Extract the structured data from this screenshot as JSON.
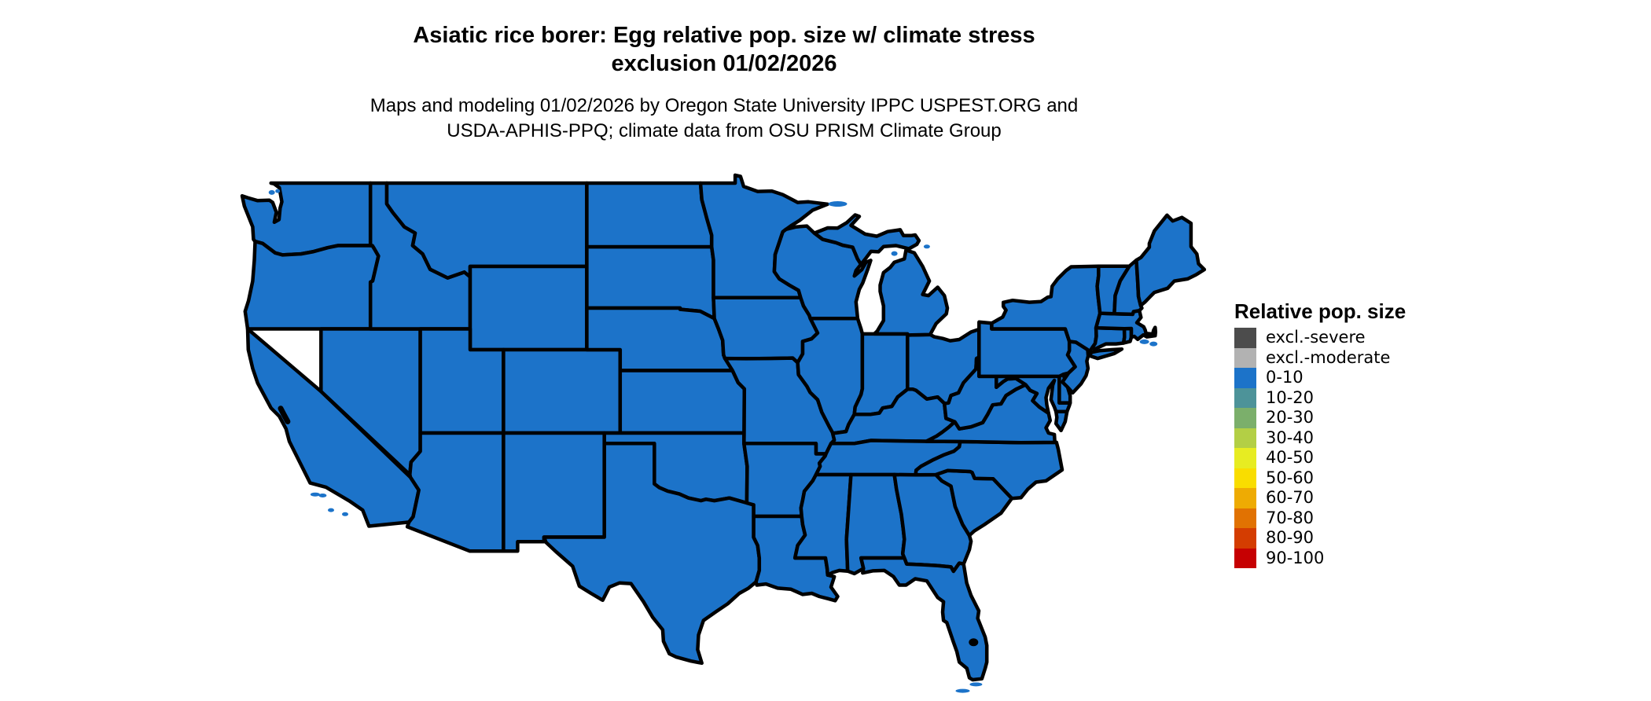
{
  "page": {
    "background": "#ffffff"
  },
  "title": {
    "line1": "Asiatic rice borer: Egg relative pop. size w/ climate stress",
    "line2": "exclusion 01/02/2026"
  },
  "subtitle": {
    "line1": "Maps and modeling 01/02/2026 by Oregon State University IPPC USPEST.ORG and",
    "line2": "USDA-APHIS-PPQ; climate data from OSU PRISM Climate Group"
  },
  "map": {
    "region": "Contiguous United States",
    "all_states_class": "0-10",
    "state_fill": "#1c73c9",
    "border_color": "#000000",
    "water_color": "#ffffff"
  },
  "legend": {
    "title": "Relative pop. size",
    "items": [
      {
        "label": "excl.-severe",
        "color": "#4c4c4c"
      },
      {
        "label": "excl.-moderate",
        "color": "#b2b2b2"
      },
      {
        "label": "0-10",
        "color": "#1c73c9"
      },
      {
        "label": "10-20",
        "color": "#4d9399"
      },
      {
        "label": "20-30",
        "color": "#7baf6b"
      },
      {
        "label": "30-40",
        "color": "#b3cf45"
      },
      {
        "label": "40-50",
        "color": "#e7ec22"
      },
      {
        "label": "50-60",
        "color": "#f9dd00"
      },
      {
        "label": "60-70",
        "color": "#eeab03"
      },
      {
        "label": "70-80",
        "color": "#e17202"
      },
      {
        "label": "80-90",
        "color": "#d43d01"
      },
      {
        "label": "90-100",
        "color": "#c60002"
      }
    ]
  }
}
